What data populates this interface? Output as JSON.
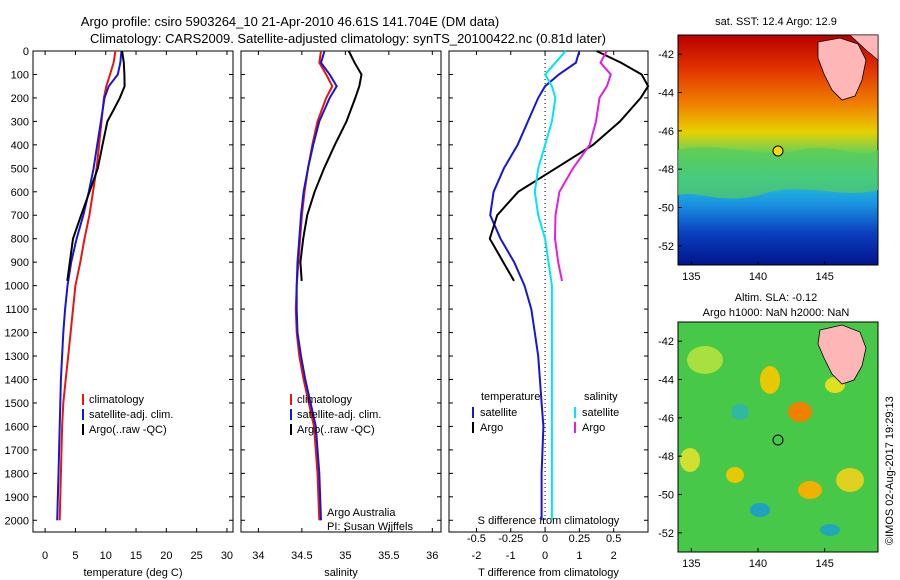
{
  "title": {
    "line1": "Argo profile: csiro 5903264_10 21-Apr-2010 46.61S 141.704E (DM data)",
    "line2": "Climatology: CARS2009. Satellite-adjusted climatology: synTS_20100422.nc (0.81d later)"
  },
  "colors": {
    "climatology": "#e8150f",
    "satellite": "#1616d8",
    "argo": "#000000",
    "sal_satellite": "#00e6ee",
    "sal_argo": "#e020dc"
  },
  "chart_data": [
    {
      "type": "line",
      "id": "temperature",
      "xlabel": "temperature (deg C)",
      "ylabel": "",
      "xlim": [
        -2,
        31
      ],
      "ylim": [
        2050,
        0
      ],
      "xticks": [
        0,
        5,
        10,
        15,
        20,
        25,
        30
      ],
      "yticks": [
        0,
        100,
        200,
        300,
        400,
        500,
        600,
        700,
        800,
        900,
        1000,
        1100,
        1200,
        1300,
        1400,
        1500,
        1600,
        1700,
        1800,
        1900,
        2000
      ],
      "legend": {
        "position": "lower-right",
        "entries": [
          "climatology",
          "satellite-adj. clim.",
          "Argo(..raw -QC)"
        ]
      },
      "series": [
        {
          "name": "climatology",
          "color": "#e8150f",
          "x": [
            11.6,
            11.3,
            10.7,
            10.1,
            9.7,
            9.3,
            8.9,
            8.5,
            7.9,
            7.3,
            6.5,
            5.8,
            5.0,
            4.6,
            4.2,
            3.8,
            3.4,
            3.0,
            2.8,
            2.6,
            2.4
          ],
          "y": [
            0,
            50,
            100,
            150,
            200,
            300,
            400,
            500,
            600,
            700,
            800,
            900,
            1000,
            1100,
            1200,
            1300,
            1400,
            1500,
            1600,
            1800,
            2000
          ]
        },
        {
          "name": "satellite-adj. clim.",
          "color": "#1616d8",
          "x": [
            12.6,
            12.4,
            12.0,
            10.5,
            9.8,
            9.2,
            8.6,
            8.0,
            7.2,
            6.3,
            5.2,
            4.3,
            3.7,
            3.3,
            3.0,
            2.8,
            2.6,
            2.5,
            2.4,
            2.2,
            2.0
          ],
          "y": [
            0,
            50,
            100,
            150,
            200,
            300,
            400,
            500,
            600,
            700,
            800,
            900,
            1000,
            1100,
            1200,
            1300,
            1400,
            1500,
            1600,
            1800,
            2000
          ]
        },
        {
          "name": "Argo(..raw -QC)",
          "color": "#000000",
          "x": [
            12.7,
            12.9,
            13.0,
            13.1,
            12.4,
            11.4,
            10.3,
            9.4,
            8.6,
            7.3,
            6.0,
            4.7,
            3.7
          ],
          "y": [
            0,
            50,
            100,
            150,
            200,
            250,
            300,
            400,
            500,
            600,
            700,
            800,
            980
          ]
        }
      ]
    },
    {
      "type": "line",
      "id": "salinity",
      "xlabel": "salinity",
      "ylabel": "",
      "xlim": [
        33.8,
        36.1
      ],
      "ylim": [
        2050,
        0
      ],
      "xticks": [
        34,
        34.5,
        35,
        35.5,
        36
      ],
      "legend": {
        "position": "lower-right",
        "entries": [
          "climatology",
          "satellite-adj. clim.",
          "Argo(..raw -QC)"
        ]
      },
      "annotation": {
        "line1": "Argo Australia",
        "line2": "PI: Susan Wijffels"
      },
      "series": [
        {
          "name": "climatology",
          "color": "#e8150f",
          "x": [
            34.72,
            34.7,
            34.78,
            34.85,
            34.78,
            34.68,
            34.62,
            34.57,
            34.53,
            34.5,
            34.48,
            34.46,
            34.44,
            34.43,
            34.44,
            34.47,
            34.52,
            34.58,
            34.64,
            34.68,
            34.7
          ],
          "y": [
            0,
            50,
            100,
            150,
            200,
            300,
            400,
            500,
            600,
            700,
            800,
            900,
            1000,
            1100,
            1200,
            1300,
            1400,
            1500,
            1600,
            1800,
            2000
          ]
        },
        {
          "name": "satellite-adj. clim.",
          "color": "#1616d8",
          "x": [
            34.76,
            34.72,
            34.82,
            34.9,
            34.82,
            34.7,
            34.63,
            34.57,
            34.52,
            34.49,
            34.47,
            34.45,
            34.44,
            34.44,
            34.45,
            34.49,
            34.54,
            34.6,
            34.66,
            34.7,
            34.72
          ],
          "y": [
            0,
            50,
            100,
            150,
            200,
            300,
            400,
            500,
            600,
            700,
            800,
            900,
            1000,
            1100,
            1200,
            1300,
            1400,
            1500,
            1600,
            1800,
            2000
          ]
        },
        {
          "name": "Argo(..raw -QC)",
          "color": "#000000",
          "x": [
            35.04,
            35.1,
            35.18,
            35.16,
            35.12,
            35.02,
            34.88,
            34.75,
            34.64,
            34.56,
            34.52,
            34.49,
            34.5
          ],
          "y": [
            0,
            50,
            100,
            150,
            200,
            300,
            400,
            500,
            600,
            700,
            800,
            900,
            980
          ]
        }
      ]
    },
    {
      "type": "line",
      "id": "difference",
      "xlabel": "T difference from climatology",
      "xlabel_top": "S difference from climatology",
      "ylabel": "",
      "xlim": [
        -2.8,
        3.0
      ],
      "ylim": [
        2050,
        0
      ],
      "xticks": [
        -2,
        -1,
        0,
        1,
        2
      ],
      "xticks_S": [
        "-0.5",
        "-0.25",
        "0",
        "0.25",
        "0.5"
      ],
      "xticks_S_values": [
        -2,
        -1,
        0,
        1,
        2
      ],
      "legend": {
        "position": "lower-center",
        "header_t": "temperature",
        "header_s": "salinity",
        "entries_t": [
          "satellite",
          "Argo"
        ],
        "entries_s": [
          "satellite",
          "Argo"
        ]
      },
      "series": [
        {
          "name": "T satellite",
          "color": "#1616d8",
          "x": [
            1.0,
            0.9,
            0.4,
            0.0,
            -0.2,
            -0.5,
            -0.8,
            -1.2,
            -1.5,
            -1.6,
            -1.3,
            -0.9,
            -0.6,
            -0.4,
            -0.3,
            -0.2,
            -0.15,
            -0.1,
            -0.05,
            -0.1,
            -0.1
          ],
          "y": [
            0,
            50,
            100,
            150,
            200,
            300,
            400,
            500,
            600,
            700,
            800,
            900,
            1000,
            1100,
            1200,
            1300,
            1400,
            1500,
            1600,
            1800,
            2000
          ]
        },
        {
          "name": "T Argo",
          "color": "#000000",
          "x": [
            1.5,
            2.2,
            2.8,
            3.0,
            2.8,
            2.2,
            1.4,
            0.3,
            -0.8,
            -1.4,
            -1.6,
            -1.2,
            -0.9
          ],
          "y": [
            0,
            50,
            100,
            150,
            200,
            300,
            400,
            500,
            600,
            700,
            800,
            900,
            980
          ]
        },
        {
          "name": "S satellite",
          "color": "#00e6ee",
          "x": [
            0.6,
            0.3,
            0.0,
            0.2,
            0.3,
            0.2,
            0.0,
            -0.2,
            -0.3,
            -0.2,
            0.0,
            0.1,
            0.2,
            0.2,
            0.2,
            0.2,
            0.2,
            0.2,
            0.2,
            0.2,
            0.2
          ],
          "y": [
            0,
            50,
            100,
            150,
            200,
            300,
            400,
            500,
            600,
            700,
            800,
            900,
            1000,
            1100,
            1200,
            1300,
            1400,
            1500,
            1600,
            1800,
            2000
          ]
        },
        {
          "name": "S Argo",
          "color": "#e020dc",
          "x": [
            1.8,
            1.6,
            1.9,
            1.8,
            1.6,
            1.5,
            1.3,
            0.8,
            0.4,
            0.3,
            0.3,
            0.4,
            0.5
          ],
          "y": [
            0,
            50,
            100,
            150,
            200,
            300,
            400,
            500,
            600,
            700,
            800,
            900,
            980
          ]
        }
      ]
    },
    {
      "type": "heatmap",
      "id": "sst_map",
      "title": "sat. SST: 12.4  Argo: 12.9",
      "xlim": [
        134,
        149
      ],
      "ylim": [
        -53,
        -41
      ],
      "xticks": [
        135,
        140,
        145
      ],
      "yticks": [
        -42,
        -44,
        -46,
        -48,
        -50,
        -52
      ],
      "marker": {
        "lon": 141.704,
        "lat": -46.61
      }
    },
    {
      "type": "heatmap",
      "id": "sla_map",
      "title_line1": "Altim. SLA: -0.12",
      "title_line2": "Argo h1000: NaN h2000: NaN",
      "xlim": [
        134,
        149
      ],
      "ylim": [
        -53,
        -41
      ],
      "xticks": [
        135,
        140,
        145
      ],
      "yticks": [
        -42,
        -44,
        -46,
        -48,
        -50,
        -52
      ],
      "marker": {
        "lon": 141.704,
        "lat": -46.61
      }
    }
  ],
  "credit": "©IMOS 02-Aug-2017 19:29:13"
}
